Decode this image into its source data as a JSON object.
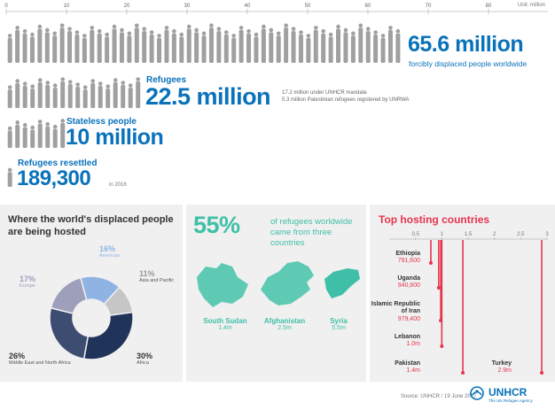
{
  "colors": {
    "blue": "#0a72ba",
    "grey": "#9a9a9a",
    "teal": "#3fbfa7",
    "red": "#e6354e",
    "panel": "#f0f0f0"
  },
  "scale": {
    "ticks": [
      "0",
      "10",
      "20",
      "30",
      "40",
      "50",
      "60",
      "70",
      "80"
    ],
    "unit": "Unit: million"
  },
  "headline": {
    "value": "65.6 million",
    "label": "forcibly displaced people worldwide"
  },
  "refugees": {
    "label": "Refugees",
    "value": "22.5 million",
    "note1": "17.2 million under UNHCR mandate",
    "note2": "5.3 million Palestinian refugees registered by UNRWA"
  },
  "stateless": {
    "label": "Stateless people",
    "value": "10 million"
  },
  "resettled": {
    "label": "Refugees resettled",
    "value": "189,300",
    "note": "in 2016"
  },
  "chart_data": [
    {
      "type": "bar",
      "title": "",
      "xlabel": "",
      "ylabel": "",
      "unit": "million",
      "categories": [
        "Forcibly displaced people worldwide",
        "Refugees",
        "Stateless people",
        "Refugees resettled"
      ],
      "values": [
        65.6,
        22.5,
        10,
        0.1893
      ],
      "xlim": [
        0,
        85
      ]
    },
    {
      "type": "pie",
      "title": "Where the world's displaced people are being hosted",
      "slices": [
        {
          "label": "Americas",
          "value": 16,
          "color": "#8fb4e4"
        },
        {
          "label": "Asia and Pacific",
          "value": 11,
          "color": "#c6c6c6"
        },
        {
          "label": "Africa",
          "value": 30,
          "color": "#20345a"
        },
        {
          "label": "Middle East and North Africa",
          "value": 26,
          "color": "#3d4d72"
        },
        {
          "label": "Europe",
          "value": 17,
          "color": "#9d9fbb"
        }
      ]
    },
    {
      "type": "bar",
      "title": "Top hosting countries",
      "unit": "million",
      "xlim": [
        0,
        3
      ],
      "ticks": [
        "0.5",
        "1",
        "1.5",
        "2",
        "2.5",
        "3"
      ],
      "categories": [
        "Ethiopia",
        "Uganda",
        "Islamic Republic of Iran",
        "Lebanon",
        "Pakistan",
        "Turkey"
      ],
      "values": [
        0.7916,
        0.9408,
        0.9794,
        1.0,
        1.4,
        2.9
      ],
      "value_labels": [
        "791,600",
        "940,800",
        "979,400",
        "1.0m",
        "1.4m",
        "2.9m"
      ]
    }
  ],
  "hosting": {
    "title": "Where the world's displaced people are being hosted",
    "labels": [
      {
        "pct": "16%",
        "name": "Americas"
      },
      {
        "pct": "11%",
        "name": "Asia and Pacific"
      },
      {
        "pct": "30%",
        "name": "Africa"
      },
      {
        "pct": "26%",
        "name": "Middle East and North Africa"
      },
      {
        "pct": "17%",
        "name": "Europe"
      }
    ]
  },
  "origins": {
    "pct": "55%",
    "text1": "of refugees worldwide",
    "text2": "came from three countries",
    "countries": [
      {
        "name": "South Sudan",
        "value": "1.4m"
      },
      {
        "name": "Afghanistan",
        "value": "2.5m"
      },
      {
        "name": "Syria",
        "value": "5.5m"
      }
    ]
  },
  "top": {
    "title": "Top hosting countries",
    "countries": [
      {
        "name": "Ethiopia",
        "value": "791,600"
      },
      {
        "name": "Uganda",
        "value": "940,800"
      },
      {
        "name": "Islamic Republic\nof Iran",
        "value": "979,400"
      },
      {
        "name": "Lebanon",
        "value": "1.0m"
      },
      {
        "name": "Pakistan",
        "value": "1.4m"
      },
      {
        "name": "Turkey",
        "value": "2.9m"
      }
    ]
  },
  "footer": {
    "source": "Source: UNHCR / 19 June 2017",
    "logo": "UNHCR",
    "tagline": "The UN Refugee Agency",
    "logo_icon": "unhcr-emblem-icon"
  }
}
